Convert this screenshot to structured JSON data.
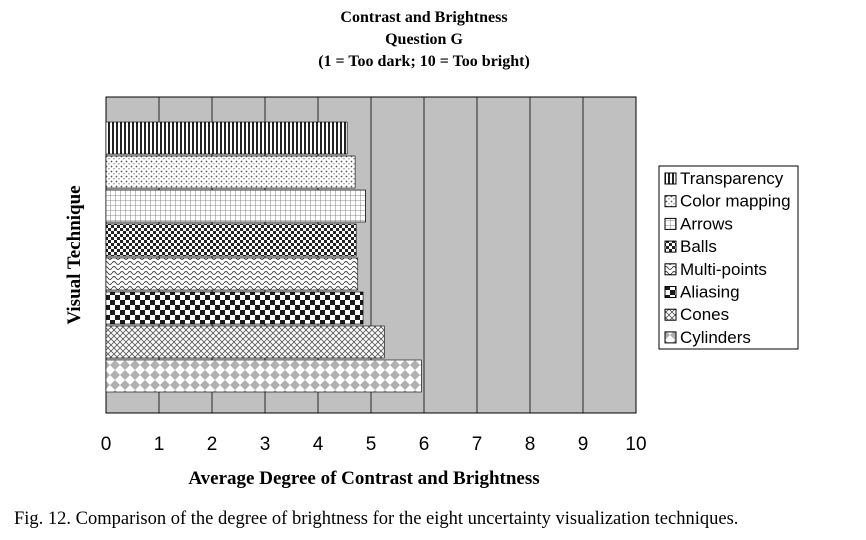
{
  "chart_data": {
    "type": "bar",
    "orientation": "horizontal",
    "title": [
      "Contrast and Brightness",
      "Question G",
      "(1 = Too dark; 10 = Too bright)"
    ],
    "xlabel": "Average Degree of Contrast and Brightness",
    "ylabel": "Visual Technique",
    "xlim": [
      0,
      10
    ],
    "xticks": [
      "0",
      "1",
      "2",
      "3",
      "4",
      "5",
      "6",
      "7",
      "8",
      "9",
      "10"
    ],
    "grid": true,
    "legend_position": "right",
    "plot_background": "#c0c0c0",
    "categories": [
      "Transparency",
      "Color mapping",
      "Arrows",
      "Balls",
      "Multi-points",
      "Aliasing",
      "Cones",
      "Cylinders"
    ],
    "values": [
      4.55,
      4.7,
      4.9,
      4.72,
      4.75,
      4.85,
      5.25,
      5.95
    ],
    "patterns": [
      "vertical-lines",
      "dots",
      "grid",
      "checker-fine",
      "waves",
      "checker",
      "crosshatch",
      "diamonds"
    ]
  },
  "caption": "Fig. 12.  Comparison of the degree of brightness for the eight uncertainty visualization techniques."
}
